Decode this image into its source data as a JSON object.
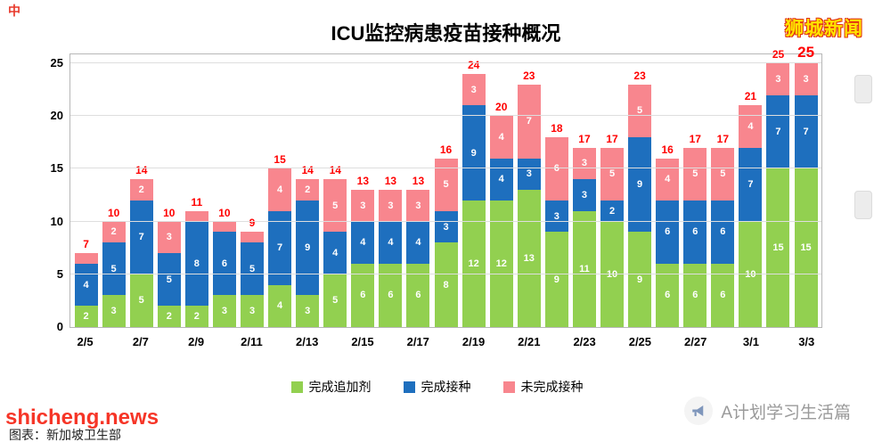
{
  "title": "ICU监控病患疫苗接种概况",
  "branding": {
    "top_right": "狮城新闻",
    "top_left_mark": "中",
    "bottom_left_watermark": "shicheng.news",
    "bottom_left_credit": "图表：新加坡卫生部",
    "bottom_right_channel": "A计划学习生活篇"
  },
  "colors": {
    "booster_green": "#92d050",
    "vaccinated_blue": "#1e6fbe",
    "unvaccinated_pink": "#f8868e",
    "total_red": "#ff0000",
    "brand_yellow": "#ffe400"
  },
  "chart_data": {
    "type": "bar",
    "stacked": true,
    "title": "ICU监控病患疫苗接种概况",
    "categories": [
      "2/5",
      "2/6",
      "2/7",
      "2/8",
      "2/9",
      "2/10",
      "2/11",
      "2/12",
      "2/13",
      "2/14",
      "2/15",
      "2/16",
      "2/17",
      "2/18",
      "2/19",
      "2/20",
      "2/21",
      "2/22",
      "2/23",
      "2/24",
      "2/25",
      "2/26",
      "2/27",
      "2/28",
      "3/1",
      "3/2",
      "3/3"
    ],
    "x_tick_labels": [
      "2/5",
      "2/7",
      "2/9",
      "2/11",
      "2/13",
      "2/15",
      "2/17",
      "2/19",
      "2/21",
      "2/23",
      "2/25",
      "2/27",
      "3/1",
      "3/3"
    ],
    "series": [
      {
        "name": "完成追加剂",
        "color": "#92d050",
        "values": [
          2,
          3,
          5,
          2,
          2,
          3,
          3,
          4,
          3,
          5,
          6,
          6,
          6,
          8,
          12,
          12,
          13,
          9,
          11,
          10,
          9,
          6,
          6,
          6,
          10,
          15,
          15
        ]
      },
      {
        "name": "完成接种",
        "color": "#1e6fbe",
        "values": [
          4,
          5,
          7,
          5,
          8,
          6,
          5,
          7,
          9,
          4,
          4,
          4,
          4,
          3,
          9,
          4,
          3,
          3,
          3,
          2,
          9,
          6,
          6,
          6,
          7,
          7,
          7
        ]
      },
      {
        "name": "未完成接种",
        "color": "#f8868e",
        "values": [
          1,
          2,
          2,
          3,
          1,
          1,
          1,
          4,
          2,
          5,
          3,
          3,
          3,
          5,
          3,
          4,
          7,
          6,
          3,
          5,
          5,
          4,
          5,
          5,
          4,
          3,
          3
        ]
      }
    ],
    "totals": [
      7,
      10,
      14,
      10,
      11,
      10,
      9,
      15,
      14,
      14,
      13,
      13,
      13,
      16,
      24,
      20,
      23,
      18,
      17,
      17,
      23,
      16,
      17,
      17,
      21,
      25,
      25
    ],
    "total_color": "#ff0000",
    "ylim": [
      0,
      25
    ],
    "yticks": [
      0,
      5,
      10,
      15,
      20,
      25
    ],
    "grid": true,
    "legend_position": "bottom",
    "min_label_value": 2
  }
}
